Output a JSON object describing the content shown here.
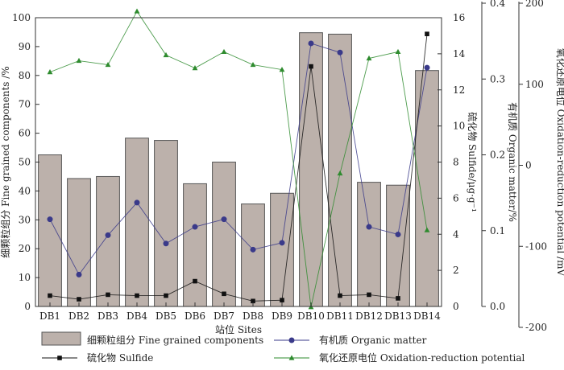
{
  "chart_data": {
    "type": "bar+line",
    "categories": [
      "DB1",
      "DB2",
      "DB3",
      "DB4",
      "DB5",
      "DB6",
      "DB7",
      "DB8",
      "DB9",
      "DB10",
      "DB11",
      "DB12",
      "DB13",
      "DB14"
    ],
    "xlabel": "站位 Sites",
    "axes": {
      "fine": {
        "label": "细颗粒组分 Fine grained components /%",
        "ylim": [
          0,
          100
        ],
        "ticks": [
          0,
          10,
          20,
          30,
          40,
          50,
          60,
          70,
          80,
          90,
          100
        ]
      },
      "sulfide": {
        "label": "硫化物 Sulfide/μg·g⁻¹",
        "ylim": [
          0,
          16
        ],
        "ticks": [
          0,
          2,
          4,
          6,
          8,
          10,
          12,
          14,
          16
        ]
      },
      "organic": {
        "label": "有机质 Organic matter/%",
        "ylim": [
          0,
          0.4
        ],
        "ticks": [
          "0.0",
          "0.1",
          "0.2",
          "0.3",
          "0.4"
        ]
      },
      "orp": {
        "label": "氧化还原电位 Oxidation-reduction potential /mV",
        "ylim": [
          -200,
          200
        ],
        "ticks": [
          -200,
          -100,
          0,
          100,
          200
        ]
      }
    },
    "series": [
      {
        "name": "细颗粒组分 Fine grained components",
        "kind": "bar",
        "axis": "fine",
        "color": "#bcb1ab",
        "stroke": "#555555",
        "values": [
          52.5,
          44.3,
          45.0,
          58.3,
          57.5,
          42.5,
          50.0,
          35.5,
          39.2,
          94.8,
          94.3,
          43.0,
          42.0,
          81.7
        ]
      },
      {
        "name": "有机质 Organic matter",
        "kind": "line",
        "axis": "organic",
        "color": "#3a3a8a",
        "marker": "circle",
        "values": [
          0.115,
          0.042,
          0.094,
          0.137,
          0.083,
          0.105,
          0.115,
          0.075,
          0.084,
          0.347,
          0.335,
          0.105,
          0.095,
          0.315
        ]
      },
      {
        "name": "硫化物 Sulfide",
        "kind": "line",
        "axis": "sulfide",
        "color": "#111111",
        "marker": "square",
        "values": [
          0.6,
          0.4,
          0.65,
          0.6,
          0.6,
          1.4,
          0.7,
          0.3,
          0.35,
          13.3,
          0.6,
          0.65,
          0.45,
          15.1
        ]
      },
      {
        "name": "氧化还原电位 Oxidation-reduction potential",
        "kind": "line",
        "axis": "orp",
        "color": "#2e8b2e",
        "marker": "triangle",
        "values": [
          115,
          129,
          124,
          190,
          136,
          120,
          140,
          124,
          118,
          -175,
          -10,
          132,
          140,
          -80
        ]
      }
    ],
    "legend": [
      "细颗粒组分 Fine grained components",
      "有机质 Organic matter",
      "硫化物 Sulfide",
      "氧化还原电位 Oxidation-reduction potential"
    ]
  }
}
